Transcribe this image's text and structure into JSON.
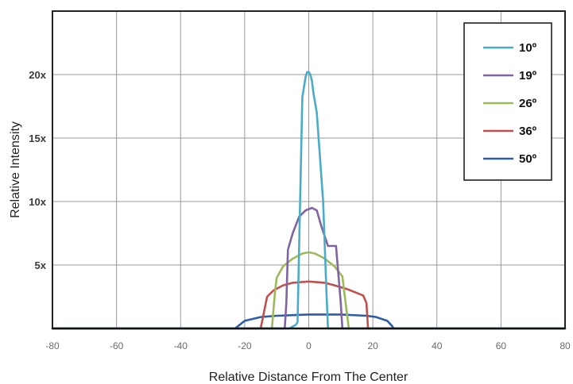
{
  "chart_data": {
    "type": "line",
    "xlabel": "Relative Distance From The Center",
    "ylabel": "Relative Intensity",
    "xlim": [
      -80,
      80
    ],
    "ylim": [
      0,
      25
    ],
    "x_ticks": [
      {
        "value": -80,
        "label": "-80"
      },
      {
        "value": -60,
        "label": "-60"
      },
      {
        "value": -40,
        "label": "-40"
      },
      {
        "value": -20,
        "label": "-20"
      },
      {
        "value": 0,
        "label": "0"
      },
      {
        "value": 20,
        "label": "20"
      },
      {
        "value": 40,
        "label": "40"
      },
      {
        "value": 60,
        "label": "60"
      },
      {
        "value": 80,
        "label": "80"
      }
    ],
    "y_ticks": [
      {
        "value": 5,
        "label": "5x"
      },
      {
        "value": 10,
        "label": "10x"
      },
      {
        "value": 15,
        "label": "15x"
      },
      {
        "value": 20,
        "label": "20x"
      }
    ],
    "grid": true,
    "legend_position": "top-right",
    "series": [
      {
        "name": "10º",
        "color": "#4bacc6",
        "points": [
          [
            -80,
            0
          ],
          [
            -6,
            0
          ],
          [
            -4,
            0.3
          ],
          [
            -3.5,
            0.5
          ],
          [
            -2,
            18.2
          ],
          [
            -1,
            19.8
          ],
          [
            -0.5,
            20.2
          ],
          [
            0,
            20.2
          ],
          [
            0.5,
            20
          ],
          [
            1,
            19.5
          ],
          [
            1.5,
            18.5
          ],
          [
            2.5,
            17
          ],
          [
            4.5,
            10
          ],
          [
            5.5,
            3
          ],
          [
            6,
            0
          ],
          [
            80,
            0
          ]
        ]
      },
      {
        "name": "19º",
        "color": "#8064a2",
        "points": [
          [
            -80,
            0
          ],
          [
            -7.5,
            0
          ],
          [
            -7,
            2
          ],
          [
            -6.5,
            6.2
          ],
          [
            -5,
            7.5
          ],
          [
            -3,
            8.8
          ],
          [
            -1,
            9.3
          ],
          [
            1,
            9.5
          ],
          [
            2.5,
            9.3
          ],
          [
            4,
            8
          ],
          [
            6,
            6.5
          ],
          [
            8.5,
            6.5
          ],
          [
            10,
            2
          ],
          [
            10.5,
            0
          ],
          [
            80,
            0
          ]
        ]
      },
      {
        "name": "26º",
        "color": "#9bbb59",
        "points": [
          [
            -80,
            0
          ],
          [
            -11.5,
            0
          ],
          [
            -10.5,
            3
          ],
          [
            -10,
            4
          ],
          [
            -8,
            4.9
          ],
          [
            -5,
            5.5
          ],
          [
            -2,
            5.9
          ],
          [
            0,
            6.0
          ],
          [
            2,
            5.9
          ],
          [
            5,
            5.5
          ],
          [
            8,
            4.9
          ],
          [
            10.5,
            4.1
          ],
          [
            11.5,
            2
          ],
          [
            12.5,
            0
          ],
          [
            80,
            0
          ]
        ]
      },
      {
        "name": "36º",
        "color": "#c0504d",
        "points": [
          [
            -80,
            0
          ],
          [
            -15,
            0
          ],
          [
            -13,
            2.5
          ],
          [
            -11,
            3.0
          ],
          [
            -8,
            3.4
          ],
          [
            -5,
            3.6
          ],
          [
            0,
            3.7
          ],
          [
            5,
            3.6
          ],
          [
            8,
            3.4
          ],
          [
            12,
            3.1
          ],
          [
            17,
            2.6
          ],
          [
            18,
            2
          ],
          [
            18.5,
            0
          ],
          [
            80,
            0
          ]
        ]
      },
      {
        "name": "50º",
        "color": "#2e5ca8",
        "points": [
          [
            -80,
            0
          ],
          [
            -23,
            0
          ],
          [
            -20,
            0.6
          ],
          [
            -15,
            0.9
          ],
          [
            -10,
            1.0
          ],
          [
            0,
            1.1
          ],
          [
            10,
            1.1
          ],
          [
            18,
            1.0
          ],
          [
            21,
            0.9
          ],
          [
            24.5,
            0.6
          ],
          [
            26,
            0.2
          ],
          [
            26.5,
            0
          ],
          [
            80,
            0
          ]
        ]
      }
    ]
  }
}
